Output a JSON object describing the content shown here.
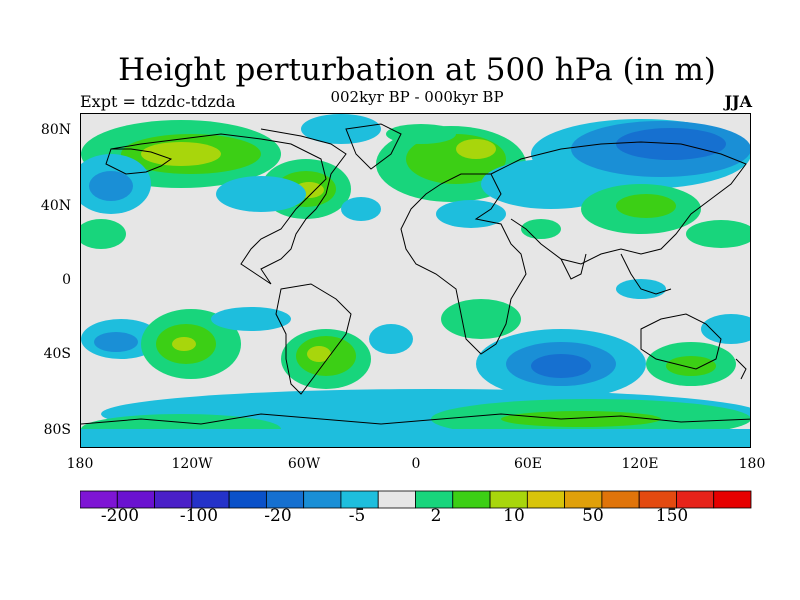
{
  "title": "Height perturbation at 500 hPa (in m)",
  "subtitle": "002kyr BP - 000kyr BP",
  "left_label": "Expt = tdzdc-tdzda",
  "right_label": "JJA",
  "lat_labels": [
    "80N",
    "40N",
    "0",
    "40S",
    "80S"
  ],
  "lon_labels": [
    "180",
    "120W",
    "60W",
    "0",
    "60E",
    "120E",
    "180"
  ],
  "colorbar": {
    "colors": [
      "#7e15d4",
      "#6a12d0",
      "#4a20c8",
      "#2432c9",
      "#0a51c9",
      "#1670d0",
      "#1a8fd6",
      "#1ebedd",
      "#e6e6e6",
      "#18d57c",
      "#3ccf15",
      "#a8d60c",
      "#d8c40a",
      "#e0a00a",
      "#e0740a",
      "#e34a10",
      "#e6231a",
      "#e60000"
    ],
    "tick_labels": [
      "-200",
      "-100",
      "-20",
      "-5",
      "2",
      "10",
      "50",
      "150"
    ]
  },
  "palette": {
    "background": "#e6e6e6",
    "light_green": "#18d57c",
    "green": "#3ccf15",
    "yellow_green": "#a8d60c",
    "cyan": "#1ebedd",
    "light_blue": "#1a8fd6",
    "blue": "#1670d0"
  }
}
